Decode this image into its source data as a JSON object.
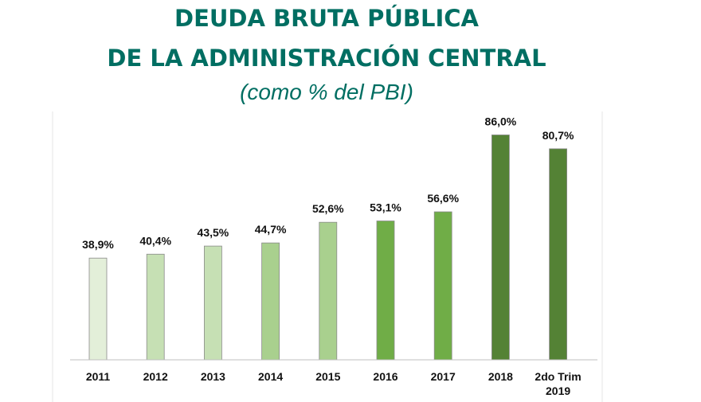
{
  "chart_data": {
    "type": "bar",
    "title_line1": "DEUDA BRUTA PÚBLICA",
    "title_line2": "DE LA ADMINISTRACIÓN CENTRAL",
    "subtitle": "(como % del PBI)",
    "categories": [
      "2011",
      "2012",
      "2013",
      "2014",
      "2015",
      "2016",
      "2017",
      "2018",
      "2do Trim 2019"
    ],
    "category_lines": [
      [
        "2011"
      ],
      [
        "2012"
      ],
      [
        "2013"
      ],
      [
        "2014"
      ],
      [
        "2015"
      ],
      [
        "2016"
      ],
      [
        "2017"
      ],
      [
        "2018"
      ],
      [
        "2do Trim",
        "2019"
      ]
    ],
    "values": [
      38.9,
      40.4,
      43.5,
      44.7,
      52.6,
      53.1,
      56.6,
      86.0,
      80.7
    ],
    "data_labels": [
      "38,9%",
      "40,4%",
      "43,5%",
      "44,7%",
      "52,6%",
      "53,1%",
      "56,6%",
      "86,0%",
      "80,7%"
    ],
    "colors": [
      "#e3efd9",
      "#c6e0b4",
      "#c6e0b4",
      "#a9d08e",
      "#a9d08e",
      "#70ad47",
      "#70ad47",
      "#548235",
      "#548235"
    ],
    "ylim": [
      0,
      100
    ],
    "grid": false,
    "xlabel": "",
    "ylabel": ""
  }
}
